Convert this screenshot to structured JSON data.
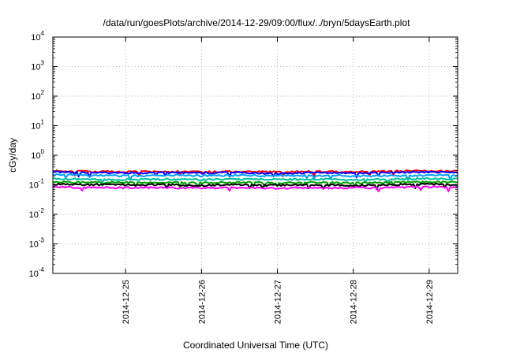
{
  "chart_data": {
    "type": "line",
    "title": "/data/run/goesPlots/archive/2014-12-29/09:00/flux/../bryn/5daysEarth.plot",
    "xlabel": "Coordinated Universal Time (UTC)",
    "ylabel": "cGy/day",
    "y_scale": "log",
    "ylim": [
      0.0001,
      10000
    ],
    "xlim": [
      "2014-12-24 01:00",
      "2014-12-29 09:00"
    ],
    "y_ticks": [
      {
        "base": "10",
        "exp": "-4"
      },
      {
        "base": "10",
        "exp": "-3"
      },
      {
        "base": "10",
        "exp": "-2"
      },
      {
        "base": "10",
        "exp": "-1"
      },
      {
        "base": "10",
        "exp": "0"
      },
      {
        "base": "10",
        "exp": "1"
      },
      {
        "base": "10",
        "exp": "2"
      },
      {
        "base": "10",
        "exp": "3"
      },
      {
        "base": "10",
        "exp": "4"
      }
    ],
    "x_ticks": [
      {
        "label": "2014-12-25",
        "date": "2014-12-25 00:00"
      },
      {
        "label": "2014-12-26",
        "date": "2014-12-26 00:00"
      },
      {
        "label": "2014-12-27",
        "date": "2014-12-27 00:00"
      },
      {
        "label": "2014-12-28",
        "date": "2014-12-28 00:00"
      },
      {
        "label": "2014-12-29",
        "date": "2014-12-29 00:00"
      }
    ],
    "x": [
      "2014-12-24 01:00",
      "2014-12-24 12:00",
      "2014-12-25 00:00",
      "2014-12-25 12:00",
      "2014-12-26 00:00",
      "2014-12-26 12:00",
      "2014-12-27 00:00",
      "2014-12-27 12:00",
      "2014-12-28 00:00",
      "2014-12-28 12:00",
      "2014-12-29 00:00",
      "2014-12-29 09:00"
    ],
    "series": [
      {
        "color": "#ff0000",
        "values": [
          0.29,
          0.28,
          0.27,
          0.28,
          0.27,
          0.28,
          0.27,
          0.28,
          0.27,
          0.29,
          0.3,
          0.29
        ]
      },
      {
        "color": "#0000ff",
        "values": [
          0.27,
          0.26,
          0.25,
          0.26,
          0.25,
          0.26,
          0.24,
          0.26,
          0.25,
          0.26,
          0.27,
          0.26
        ]
      },
      {
        "color": "#00a0ff",
        "values": [
          0.22,
          0.21,
          0.2,
          0.21,
          0.2,
          0.21,
          0.2,
          0.21,
          0.2,
          0.2,
          0.21,
          0.21
        ]
      },
      {
        "color": "#00c0a0",
        "values": [
          0.16,
          0.155,
          0.15,
          0.155,
          0.15,
          0.155,
          0.15,
          0.155,
          0.15,
          0.155,
          0.16,
          0.155
        ]
      },
      {
        "color": "#00a000",
        "values": [
          0.125,
          0.12,
          0.12,
          0.12,
          0.115,
          0.12,
          0.115,
          0.12,
          0.115,
          0.12,
          0.125,
          0.12
        ]
      },
      {
        "color": "#000000",
        "values": [
          0.105,
          0.1,
          0.1,
          0.1,
          0.095,
          0.1,
          0.095,
          0.1,
          0.095,
          0.1,
          0.105,
          0.1
        ]
      },
      {
        "color": "#ff00ff",
        "values": [
          0.085,
          0.08,
          0.08,
          0.08,
          0.078,
          0.08,
          0.076,
          0.08,
          0.078,
          0.08,
          0.085,
          0.08
        ]
      }
    ],
    "grid": true,
    "grid_style": "dotted",
    "legend": "none"
  }
}
